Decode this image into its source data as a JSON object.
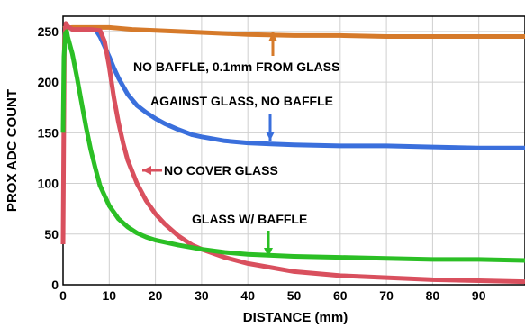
{
  "chart_data": {
    "type": "line",
    "title": "",
    "xlabel": "DISTANCE (mm)",
    "ylabel": "PROX ADC COUNT",
    "xlim": [
      0,
      100
    ],
    "ylim": [
      0,
      265
    ],
    "x_ticks": [
      "0",
      "10",
      "20",
      "30",
      "40",
      "50",
      "60",
      "70",
      "80",
      "90"
    ],
    "y_ticks": [
      "0",
      "50",
      "100",
      "150",
      "200",
      "250"
    ],
    "grid": true,
    "series": [
      {
        "color": "#d67a2a",
        "x": [
          0,
          2,
          5,
          10,
          15,
          20,
          25,
          30,
          40,
          50,
          60,
          70,
          80,
          90,
          100
        ],
        "values": [
          253,
          254,
          254,
          254,
          252,
          251,
          250,
          249,
          247,
          246,
          246,
          245,
          245,
          245,
          245
        ]
      },
      {
        "color": "#3a6fdc",
        "x": [
          7,
          8,
          9,
          10,
          11,
          12,
          13,
          14,
          16,
          18,
          20,
          22,
          25,
          28,
          30,
          35,
          40,
          45,
          50,
          60,
          70,
          80,
          90,
          100
        ],
        "values": [
          252,
          245,
          235,
          225,
          214,
          204,
          196,
          188,
          177,
          170,
          164,
          159,
          153,
          148,
          146,
          142,
          140,
          139,
          138,
          137,
          137,
          136,
          135,
          135
        ]
      },
      {
        "color": "#d9505e",
        "x": [
          0,
          0.3,
          0.6,
          1,
          2,
          4,
          6,
          8,
          9,
          10,
          11,
          12,
          13,
          14,
          16,
          18,
          20,
          22,
          25,
          28,
          30,
          35,
          40,
          45,
          50,
          55,
          60,
          65,
          70,
          80,
          90,
          100
        ],
        "values": [
          40,
          240,
          258,
          255,
          252,
          252,
          252,
          251,
          240,
          215,
          185,
          160,
          140,
          123,
          100,
          83,
          70,
          60,
          48,
          39,
          35,
          27,
          21,
          17,
          13,
          11,
          9,
          8,
          7,
          5,
          4,
          3
        ]
      },
      {
        "color": "#2bbf25",
        "x": [
          0,
          0.2,
          0.5,
          0.8,
          1,
          2,
          3,
          4,
          5,
          6,
          7,
          8,
          10,
          12,
          14,
          16,
          18,
          20,
          25,
          30,
          35,
          40,
          45,
          50,
          60,
          70,
          80,
          90,
          100
        ],
        "values": [
          150,
          225,
          248,
          250,
          245,
          228,
          205,
          180,
          155,
          133,
          115,
          98,
          78,
          65,
          57,
          51,
          47,
          44,
          39,
          35,
          32,
          30,
          29,
          28,
          27,
          26,
          25,
          25,
          24
        ]
      }
    ],
    "annotations": [
      {
        "text": "NO BAFFLE, 0.1mm FROM GLASS",
        "arrow_color": "#d67a2a"
      },
      {
        "text": "AGAINST GLASS, NO BAFFLE",
        "arrow_color": "#3a6fdc"
      },
      {
        "text": "NO COVER GLASS",
        "arrow_color": "#d9505e"
      },
      {
        "text": "GLASS W/ BAFFLE",
        "arrow_color": "#2bbf25"
      }
    ]
  }
}
